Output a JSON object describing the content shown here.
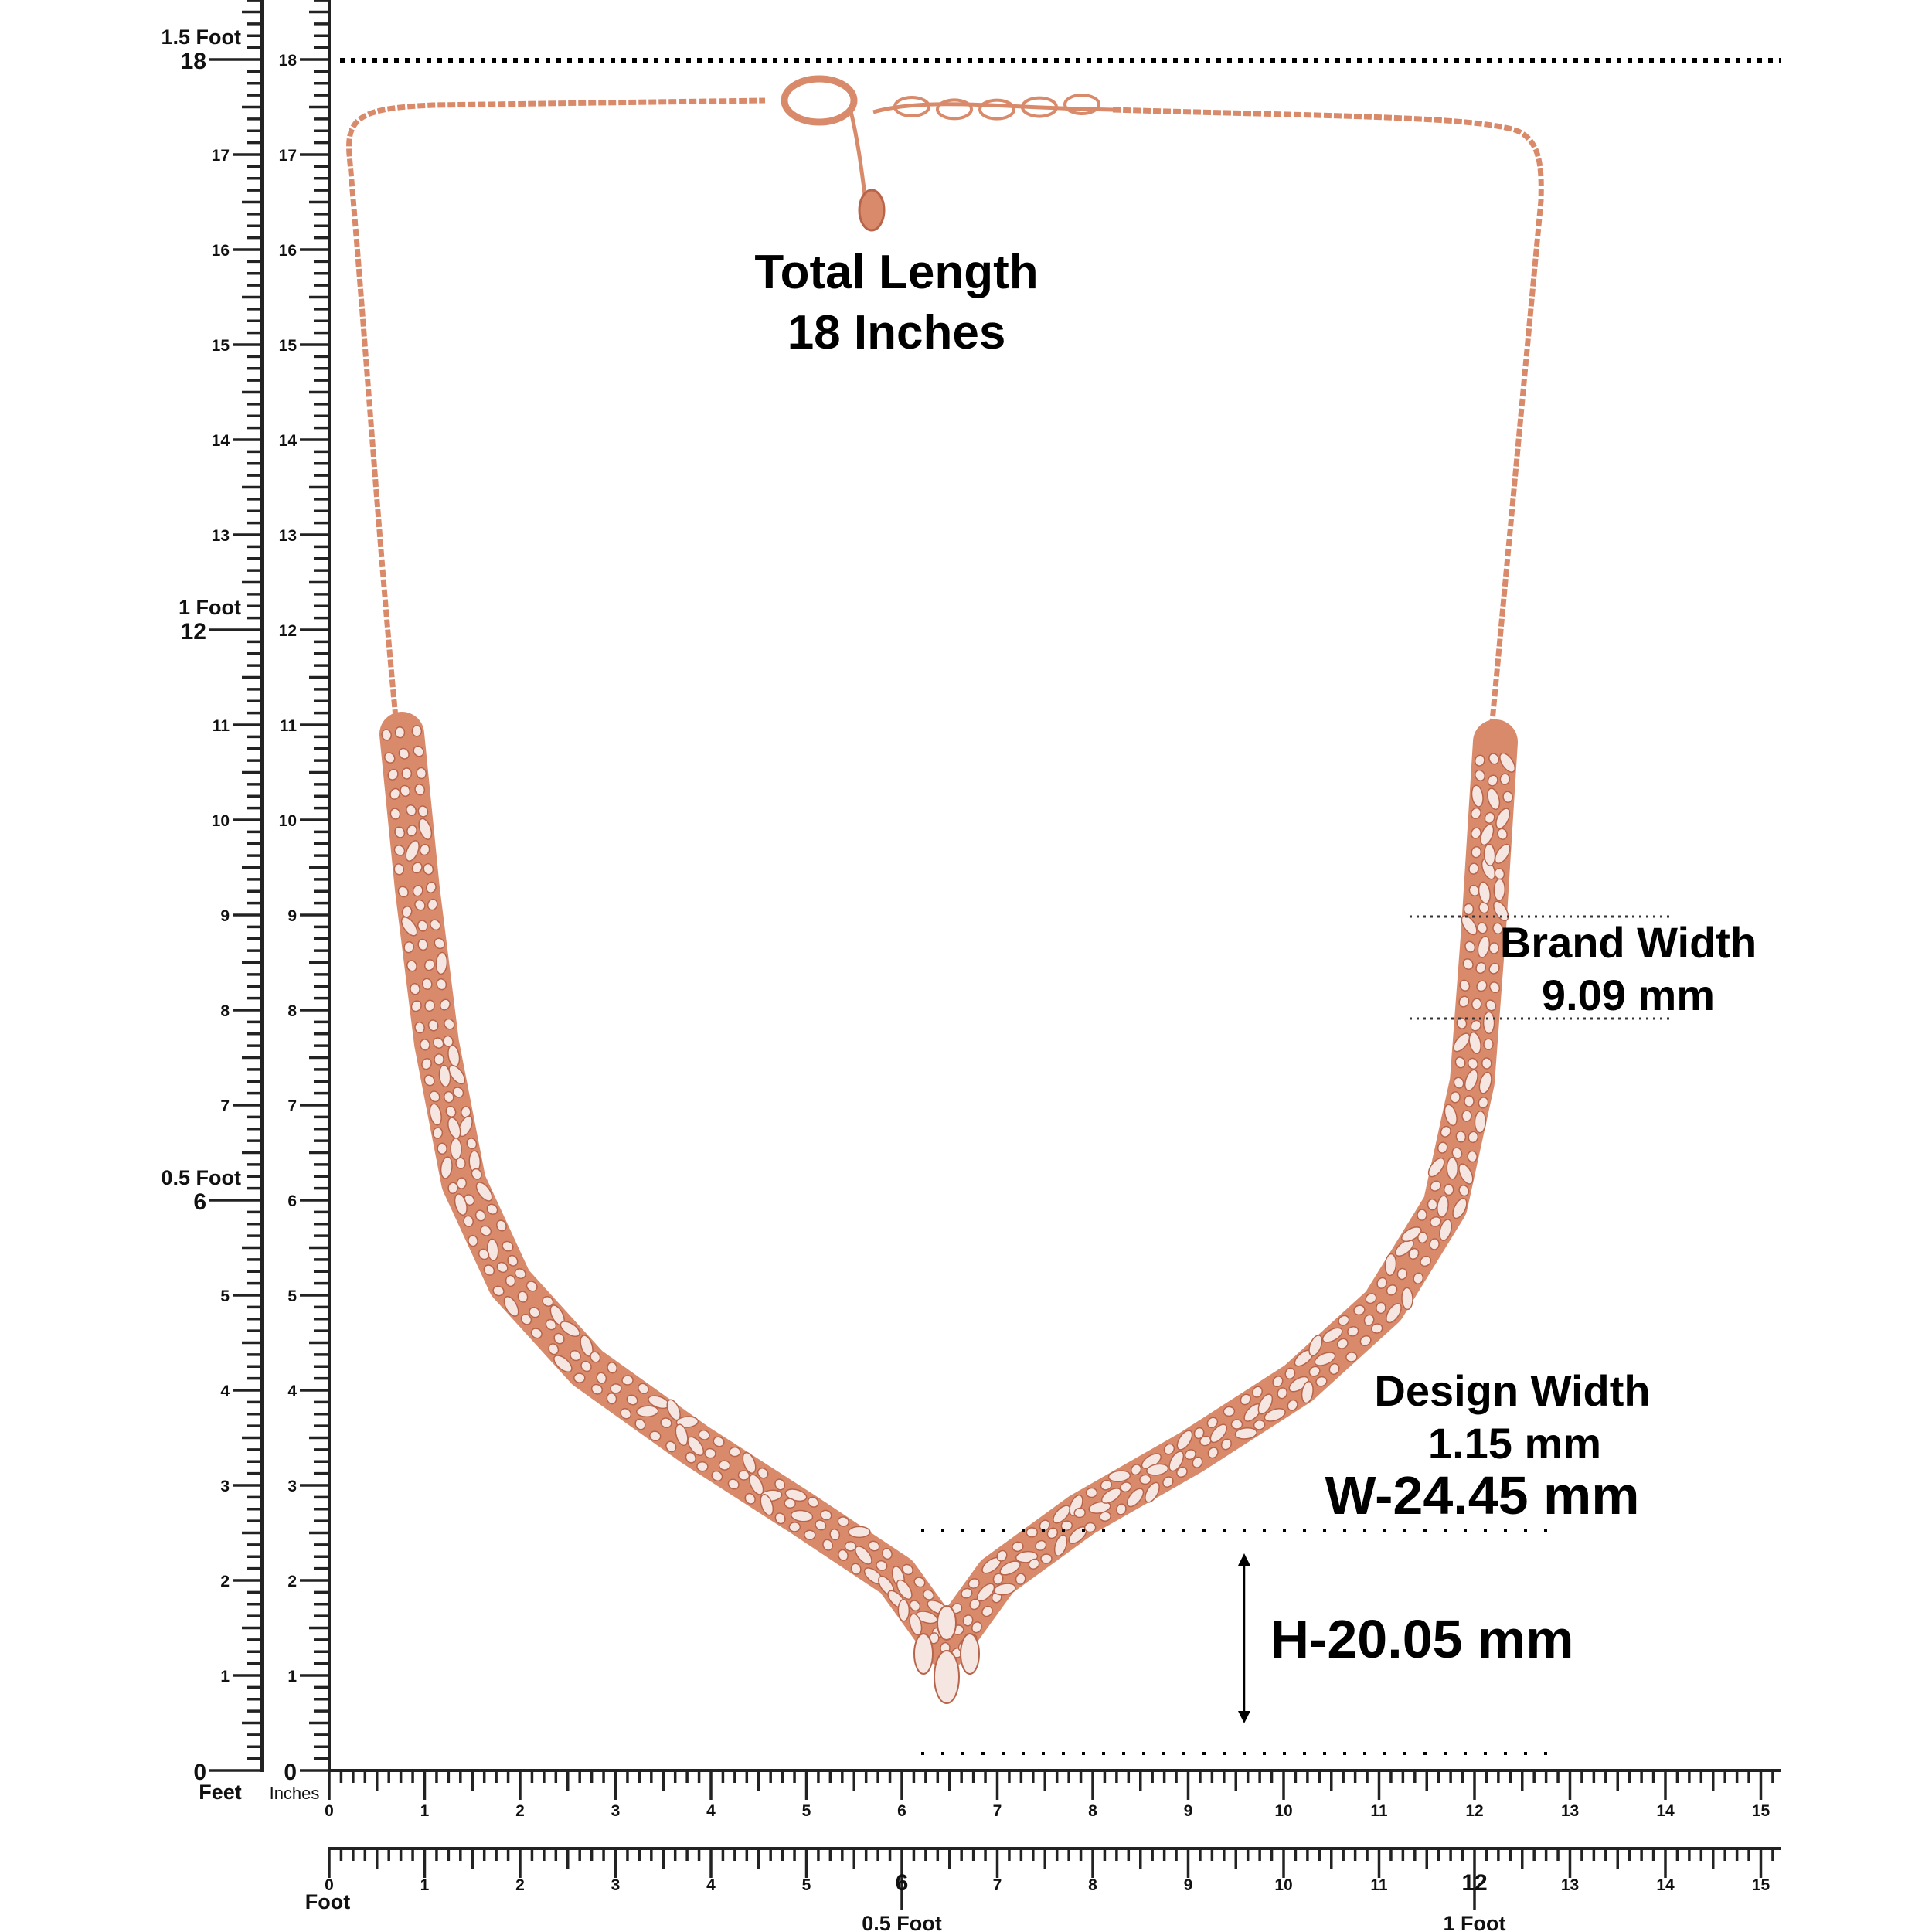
{
  "colors": {
    "metal": "#d88a6a",
    "metal_dark": "#b8644a",
    "stone": "#f6e6e2",
    "ink": "#222222"
  },
  "total_length": {
    "line1": "Total Length",
    "line2": "18 Inches"
  },
  "brand_width": {
    "line1": "Brand Width",
    "line2": "9.09 mm"
  },
  "design_width": {
    "line1": "Design Width",
    "line2": "1.15 mm"
  },
  "width_label": "W-24.45 mm",
  "height_label": "H-20.05 mm",
  "left_feet_ruler": {
    "unit_label": "Feet",
    "inch_labels": [
      "0",
      "1",
      "2",
      "3",
      "4",
      "5",
      "6",
      "7",
      "8",
      "9",
      "10",
      "11",
      "12",
      "13",
      "14",
      "15",
      "16",
      "17",
      "18"
    ],
    "foot_marks": [
      {
        "inch": 6,
        "label": "0.5 Foot"
      },
      {
        "inch": 12,
        "label": "1 Foot"
      },
      {
        "inch": 18,
        "label": "1.5 Foot"
      }
    ]
  },
  "left_inch_ruler": {
    "unit_label": "Inches",
    "inch_labels": [
      "0",
      "1",
      "2",
      "3",
      "4",
      "5",
      "6",
      "7",
      "8",
      "9",
      "10",
      "11",
      "12",
      "13",
      "14",
      "15",
      "16",
      "17",
      "18"
    ]
  },
  "bottom_inch_ruler": {
    "inch_labels": [
      "0",
      "1",
      "2",
      "3",
      "4",
      "5",
      "6",
      "7",
      "8",
      "9",
      "10",
      "11",
      "12",
      "13",
      "14",
      "15"
    ]
  },
  "bottom_foot_ruler": {
    "unit_label": "Foot",
    "inch_labels": [
      "0",
      "1",
      "2",
      "3",
      "4",
      "5",
      "6",
      "7",
      "8",
      "9",
      "10",
      "11",
      "12",
      "13",
      "14",
      "15"
    ],
    "foot_marks": [
      {
        "inch": 6,
        "label": "0.5 Foot"
      },
      {
        "inch": 12,
        "label": "1 Foot"
      }
    ]
  }
}
